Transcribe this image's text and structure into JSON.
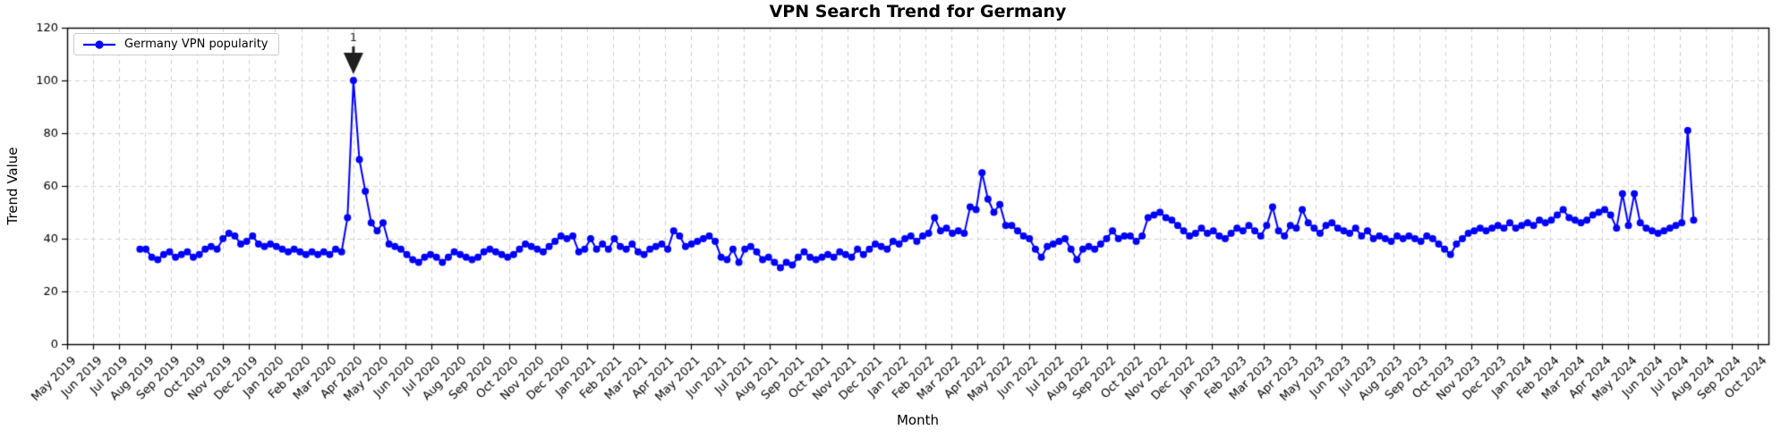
{
  "chart_data": {
    "type": "line",
    "title": "VPN Search Trend for Germany",
    "xlabel": "Month",
    "ylabel": "Trend Value",
    "ylim": [
      0,
      120
    ],
    "y_ticks": [
      0,
      20,
      40,
      60,
      80,
      100,
      120
    ],
    "grid": true,
    "legend_position": "upper left",
    "x_tick_labels": [
      "May 2019",
      "Jun 2019",
      "Jul 2019",
      "Aug 2019",
      "Sep 2019",
      "Oct 2019",
      "Nov 2019",
      "Dec 2019",
      "Jan 2020",
      "Feb 2020",
      "Mar 2020",
      "Apr 2020",
      "May 2020",
      "Jun 2020",
      "Jul 2020",
      "Aug 2020",
      "Sep 2020",
      "Oct 2020",
      "Nov 2020",
      "Dec 2020",
      "Jan 2021",
      "Feb 2021",
      "Mar 2021",
      "Apr 2021",
      "May 2021",
      "Jun 2021",
      "Jul 2021",
      "Aug 2021",
      "Sep 2021",
      "Oct 2021",
      "Nov 2021",
      "Dec 2021",
      "Jan 2022",
      "Feb 2022",
      "Mar 2022",
      "Apr 2022",
      "May 2022",
      "Jun 2022",
      "Jul 2022",
      "Aug 2022",
      "Sep 2022",
      "Oct 2022",
      "Nov 2022",
      "Dec 2022",
      "Jan 2023",
      "Feb 2023",
      "Mar 2023",
      "Apr 2023",
      "May 2023",
      "Jun 2023",
      "Jul 2023",
      "Aug 2023",
      "Sep 2023",
      "Oct 2023",
      "Nov 2023",
      "Dec 2023",
      "Jan 2024",
      "Feb 2024",
      "Mar 2024",
      "Apr 2024",
      "May 2024",
      "Jun 2024",
      "Jul 2024",
      "Aug 2024",
      "Sep 2024",
      "Oct 2024"
    ],
    "series": [
      {
        "name": "Germany VPN popularity",
        "color": "#0000ff",
        "marker": "circle",
        "frequency": "weekly",
        "x_start_month_index": 2.8,
        "x_month_step": 0.228,
        "values": [
          36,
          36,
          33,
          32,
          34,
          35,
          33,
          34,
          35,
          33,
          34,
          36,
          37,
          36,
          40,
          42,
          41,
          38,
          39,
          41,
          38,
          37,
          38,
          37,
          36,
          35,
          36,
          35,
          34,
          35,
          34,
          35,
          34,
          36,
          35,
          48,
          100,
          70,
          58,
          46,
          43,
          46,
          38,
          37,
          36,
          34,
          32,
          31,
          33,
          34,
          33,
          31,
          33,
          35,
          34,
          33,
          32,
          33,
          35,
          36,
          35,
          34,
          33,
          34,
          36,
          38,
          37,
          36,
          35,
          37,
          39,
          41,
          40,
          41,
          35,
          36,
          40,
          36,
          38,
          36,
          40,
          37,
          36,
          38,
          35,
          34,
          36,
          37,
          38,
          36,
          43,
          41,
          37,
          38,
          39,
          40,
          41,
          39,
          33,
          32,
          36,
          31,
          36,
          37,
          35,
          32,
          33,
          31,
          29,
          31,
          30,
          33,
          35,
          33,
          32,
          33,
          34,
          33,
          35,
          34,
          33,
          36,
          34,
          36,
          38,
          37,
          36,
          39,
          38,
          40,
          41,
          39,
          41,
          42,
          48,
          43,
          44,
          42,
          43,
          42,
          52,
          51,
          65,
          55,
          50,
          53,
          45,
          45,
          43,
          41,
          40,
          36,
          33,
          37,
          38,
          39,
          40,
          36,
          32,
          36,
          37,
          36,
          38,
          40,
          43,
          40,
          41,
          41,
          39,
          41,
          48,
          49,
          50,
          48,
          47,
          45,
          43,
          41,
          42,
          44,
          42,
          43,
          41,
          40,
          42,
          44,
          43,
          45,
          43,
          41,
          45,
          52,
          43,
          41,
          45,
          44,
          51,
          46,
          44,
          42,
          45,
          46,
          44,
          43,
          42,
          44,
          41,
          43,
          40,
          41,
          40,
          39,
          41,
          40,
          41,
          40,
          39,
          41,
          40,
          38,
          36,
          34,
          38,
          40,
          42,
          43,
          44,
          43,
          44,
          45,
          44,
          46,
          44,
          45,
          46,
          45,
          47,
          46,
          47,
          49,
          51,
          48,
          47,
          46,
          47,
          49,
          50,
          51,
          49,
          44,
          57,
          45,
          57,
          46,
          44,
          43,
          42,
          43,
          44,
          45,
          46,
          81,
          47
        ]
      }
    ],
    "annotations": [
      {
        "label": "1",
        "attach_to": "max-of-series-0",
        "shape": "down-wedge-arrow",
        "color": "#1f1f1f"
      }
    ],
    "colors": {
      "line": "#0000ff",
      "grid": "#cfcfcf",
      "axis": "#000000",
      "background": "#ffffff",
      "legend_border": "#cccccc"
    }
  }
}
